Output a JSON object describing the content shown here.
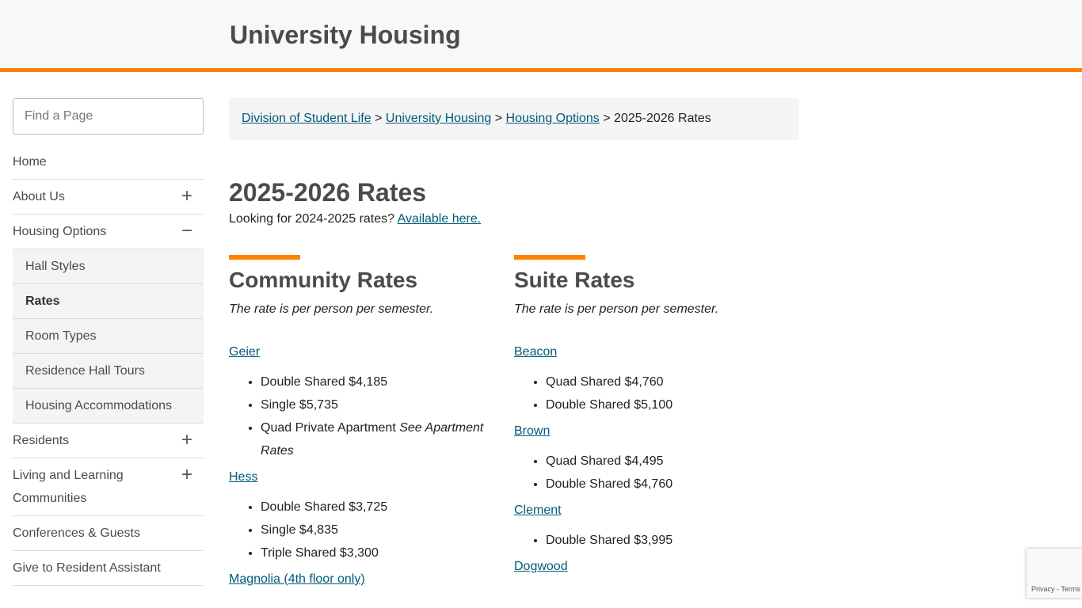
{
  "header": {
    "title": "University Housing"
  },
  "search": {
    "placeholder": "Find a Page"
  },
  "nav": [
    {
      "label": "Home",
      "icon": ""
    },
    {
      "label": "About Us",
      "icon": "+"
    },
    {
      "label": "Housing Options",
      "icon": "−"
    },
    {
      "label": "Hall Styles",
      "sub": true
    },
    {
      "label": "Rates",
      "sub": true,
      "active": true
    },
    {
      "label": "Room Types",
      "sub": true
    },
    {
      "label": "Residence Hall Tours",
      "sub": true
    },
    {
      "label": "Housing Accommodations",
      "sub": true
    },
    {
      "label": "Residents",
      "icon": "+"
    },
    {
      "label": "Living and Learning Communities",
      "icon": "+"
    },
    {
      "label": "Conferences & Guests",
      "icon": ""
    },
    {
      "label": "Give to Resident Assistant",
      "icon": ""
    }
  ],
  "breadcrumb": {
    "items": [
      "Division of Student Life",
      "University Housing",
      "Housing Options"
    ],
    "current": "2025-2026 Rates"
  },
  "page": {
    "title": "2025-2026 Rates",
    "intro": "Looking for 2024-2025 rates?",
    "intro_link": "Available here."
  },
  "columns": [
    {
      "title": "Community Rates",
      "note": "The rate is per person per semester.",
      "halls": [
        {
          "name": "Geier",
          "rates": [
            "Double Shared $4,185",
            "Single $5,735",
            "Quad Private Apartment <i>See Apartment Rates</i>"
          ]
        },
        {
          "name": "Hess",
          "rates": [
            "Double Shared $3,725",
            "Single $4,835",
            "Triple Shared $3,300"
          ]
        },
        {
          "name": "Magnolia (4th floor only)",
          "rates": []
        }
      ]
    },
    {
      "title": "Suite Rates",
      "note": "The rate is per person per semester.",
      "halls": [
        {
          "name": "Beacon",
          "rates": [
            "Quad Shared $4,760",
            "Double Shared $5,100"
          ]
        },
        {
          "name": "Brown",
          "rates": [
            "Quad Shared $4,495",
            "Double Shared $4,760"
          ]
        },
        {
          "name": "Clement",
          "rates": [
            "Double Shared $3,995"
          ]
        },
        {
          "name": "Dogwood",
          "rates": []
        }
      ]
    }
  ],
  "recaptcha": {
    "text": "Privacy - Terms"
  },
  "colors": {
    "accent": "#ff8200",
    "link": "#005a7a"
  }
}
